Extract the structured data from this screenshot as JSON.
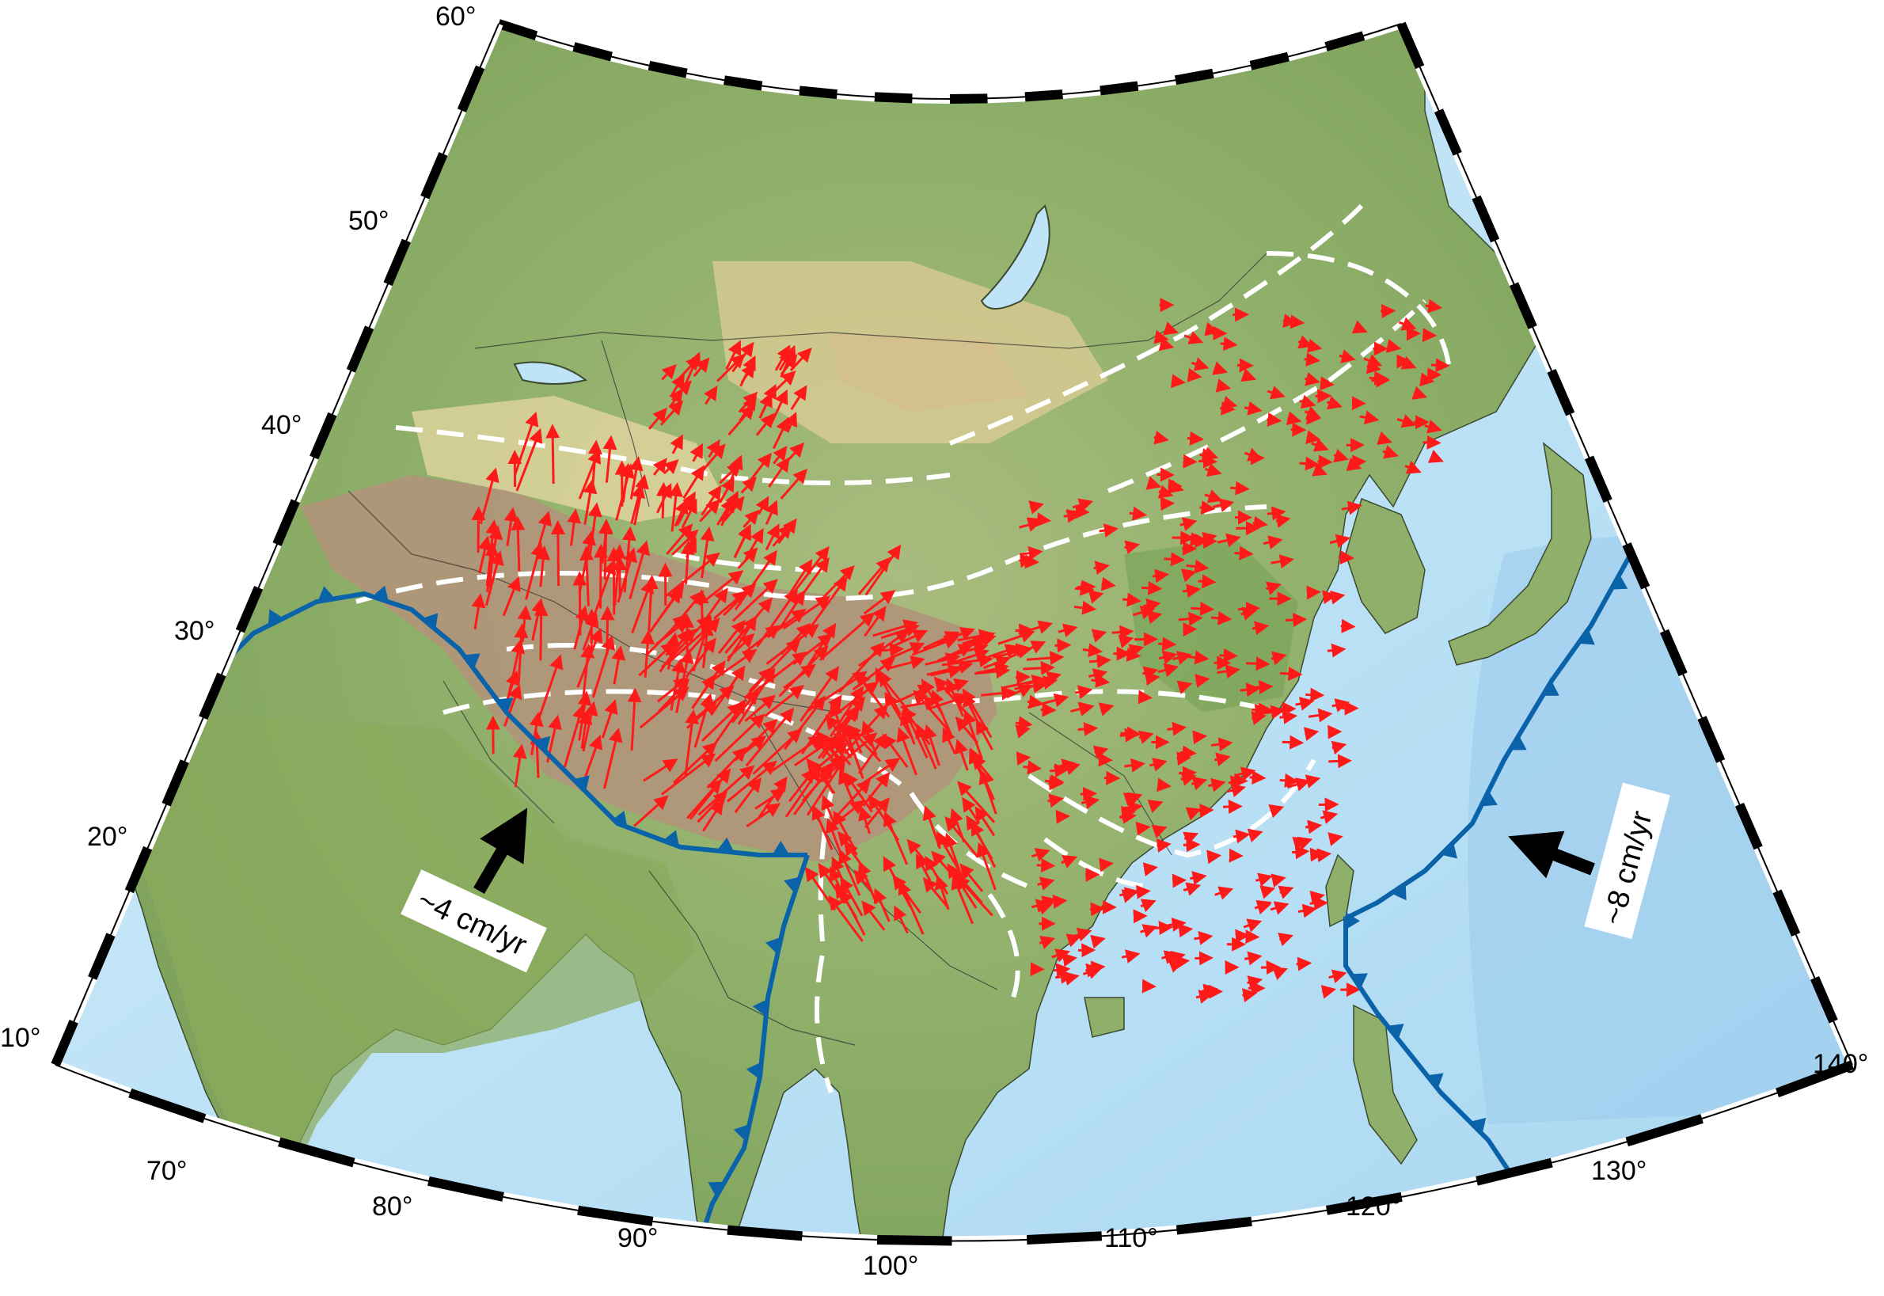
{
  "map": {
    "projection": "conic",
    "longitude_range": [
      60,
      140
    ],
    "latitude_range": [
      10,
      60
    ],
    "colors": {
      "ocean": "#bfe3f7",
      "land_low": "#8fb06a",
      "land_high": "#b09274",
      "plate_boundary": "#0a63a8",
      "gps_vectors": "#ff1a1a",
      "block_boundaries": "#ffffff",
      "frame": "#000000"
    }
  },
  "axes": {
    "longitude_ticks": [
      "70°",
      "80°",
      "90°",
      "100°",
      "110°",
      "120°",
      "130°",
      "140°"
    ],
    "latitude_ticks": [
      "10°",
      "20°",
      "30°",
      "40°",
      "50°",
      "60°"
    ]
  },
  "annotations": {
    "india_rate": "~4 cm/yr",
    "pacific_rate": "~8 cm/yr"
  },
  "legend": {
    "vector_icon": "red-velocity-arrow-icon",
    "boundary_icon": "subduction-triangle-icon"
  }
}
